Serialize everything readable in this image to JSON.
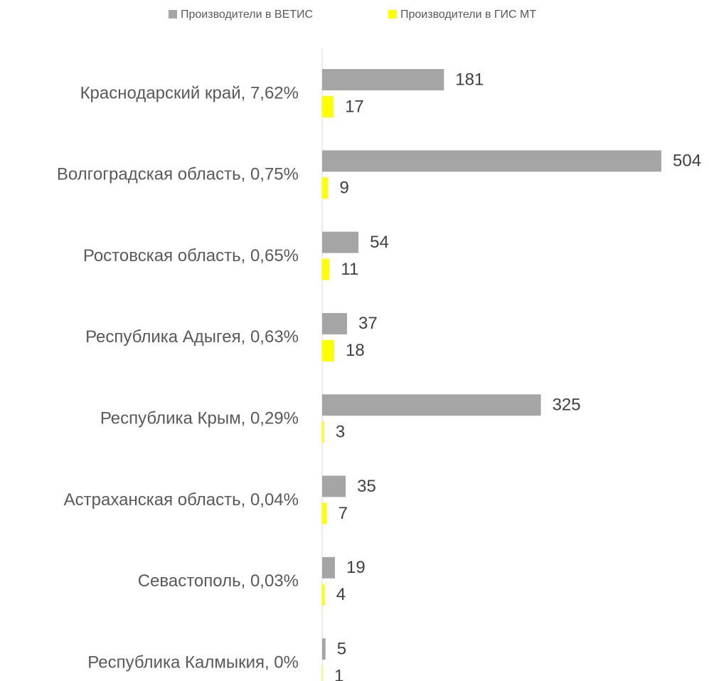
{
  "chart_data": {
    "type": "hbar",
    "categories": [
      "Краснодарский край, 7,62%",
      "Волгоградская область, 0,75%",
      "Ростовская область, 0,65%",
      "Республика Адыгея, 0,63%",
      "Республика Крым, 0,29%",
      "Астраханская область, 0,04%",
      "Севастополь, 0,03%",
      "Республика Калмыкия, 0%"
    ],
    "series": [
      {
        "name": "Производители в ВЕТИС",
        "color": "#a5a5a5",
        "values": [
          181,
          504,
          54,
          37,
          325,
          35,
          19,
          5
        ]
      },
      {
        "name": "Производители в ГИС МТ",
        "color": "#ffff00",
        "values": [
          17,
          9,
          11,
          18,
          3,
          7,
          4,
          1
        ]
      }
    ],
    "xlim": [
      0,
      504
    ],
    "legend": "top"
  }
}
